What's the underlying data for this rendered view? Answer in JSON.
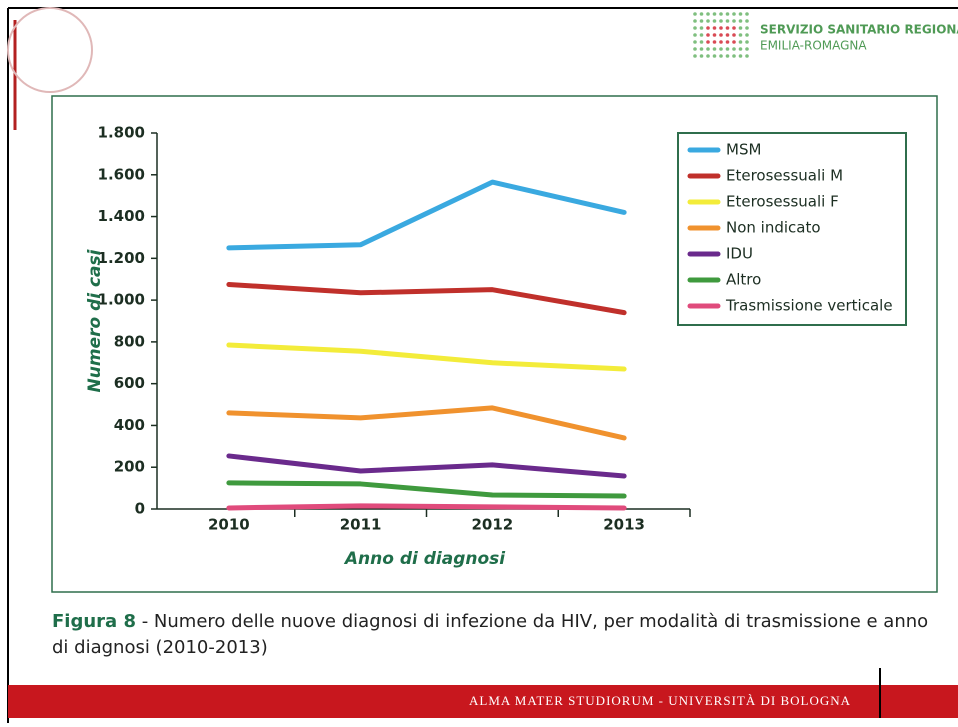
{
  "header": {
    "org_line1": "SERVIZIO SANITARIO REGIONALE",
    "org_line2": "EMILIA-ROMAGNA"
  },
  "chart_data": {
    "type": "line",
    "y_label": "Numero di casi",
    "x_label": "Anno di diagnosi",
    "categories": [
      "2010",
      "2011",
      "2012",
      "2013"
    ],
    "ylim": [
      0,
      1800
    ],
    "yticks": [
      0,
      200,
      400,
      600,
      800,
      {
        "value": 1000,
        "label": "1.000"
      },
      {
        "value": 1200,
        "label": "1.200"
      },
      {
        "value": 1400,
        "label": "1.400"
      },
      {
        "value": 1600,
        "label": "1.600"
      },
      {
        "value": 1800,
        "label": "1.800"
      }
    ],
    "legend": "top-right",
    "series": [
      {
        "name": "MSM",
        "color": "#3aa9e0",
        "values": [
          1250,
          1265,
          1565,
          1420
        ]
      },
      {
        "name": "Eterosessuali M",
        "color": "#c0302b",
        "values": [
          1075,
          1035,
          1050,
          940
        ]
      },
      {
        "name": "Eterosessuali F",
        "color": "#f3ec3a",
        "values": [
          785,
          755,
          700,
          670
        ]
      },
      {
        "name": "Non indicato",
        "color": "#f0922e",
        "values": [
          460,
          436,
          484,
          340
        ]
      },
      {
        "name": "IDU",
        "color": "#6a2a8c",
        "values": [
          254,
          182,
          211,
          158
        ]
      },
      {
        "name": "Altro",
        "color": "#3f9a3e",
        "values": [
          125,
          120,
          67,
          62
        ]
      },
      {
        "name": "Trasmissione verticale",
        "color": "#e04b7c",
        "values": [
          5,
          15,
          10,
          5
        ]
      }
    ]
  },
  "caption": {
    "label": "Figura 8",
    "text": " - Numero delle nuove diagnosi di infezione da HIV, per modalità di trasmissione e anno di diagnosi (2010-2013)"
  },
  "footer": {
    "text": "ALMA MATER STUDIORUM - UNIVERSITÀ DI BOLOGNA"
  }
}
